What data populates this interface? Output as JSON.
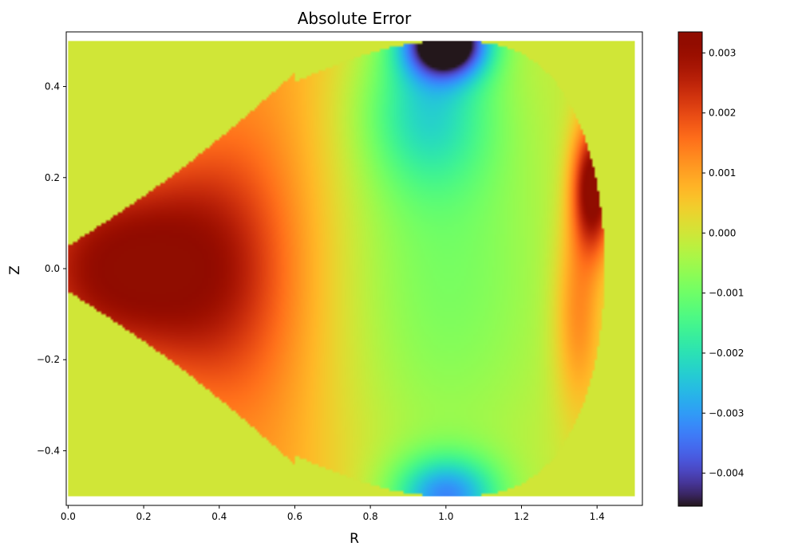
{
  "chart_data": {
    "type": "heatmap",
    "title": "Absolute Error",
    "xlabel": "R",
    "ylabel": "Z",
    "xlim": [
      -0.005,
      1.52
    ],
    "ylim": [
      -0.52,
      0.52
    ],
    "data_extent": {
      "x": [
        0.0,
        1.5
      ],
      "y": [
        -0.5,
        0.5
      ]
    },
    "xticks": [
      0.0,
      0.2,
      0.4,
      0.6,
      0.8,
      1.0,
      1.2,
      1.4
    ],
    "xtick_labels": [
      "0.0",
      "0.2",
      "0.4",
      "0.6",
      "0.8",
      "1.0",
      "1.2",
      "1.4"
    ],
    "yticks": [
      -0.4,
      -0.2,
      0.0,
      0.2,
      0.4
    ],
    "ytick_labels": [
      "−0.4",
      "−0.2",
      "0.0",
      "0.2",
      "0.4"
    ],
    "colormap": "turbo",
    "background_value": 0.0,
    "colorbar": {
      "vmin": -0.00455,
      "vmax": 0.00335,
      "ticks": [
        -0.004,
        -0.003,
        -0.002,
        -0.001,
        0.0,
        0.001,
        0.002,
        0.003
      ],
      "tick_labels": [
        "−0.004",
        "−0.003",
        "−0.002",
        "−0.001",
        "0.000",
        "0.001",
        "0.002",
        "0.003"
      ]
    },
    "grid": false,
    "features": [
      {
        "region": "left tip (R≈0.0–0.35, Z≈0)",
        "value": 0.0026
      },
      {
        "region": "top apex (R≈1.0, Z≈0.48)",
        "value": -0.0045
      },
      {
        "region": "bottom edge (R≈1.0, Z≈-0.48)",
        "value": -0.0022
      },
      {
        "region": "right edge (R≈1.35, Z≈0.2)",
        "value": 0.0033
      },
      {
        "region": "center (R≈1.0, Z≈0)",
        "value": -0.0008
      }
    ]
  }
}
